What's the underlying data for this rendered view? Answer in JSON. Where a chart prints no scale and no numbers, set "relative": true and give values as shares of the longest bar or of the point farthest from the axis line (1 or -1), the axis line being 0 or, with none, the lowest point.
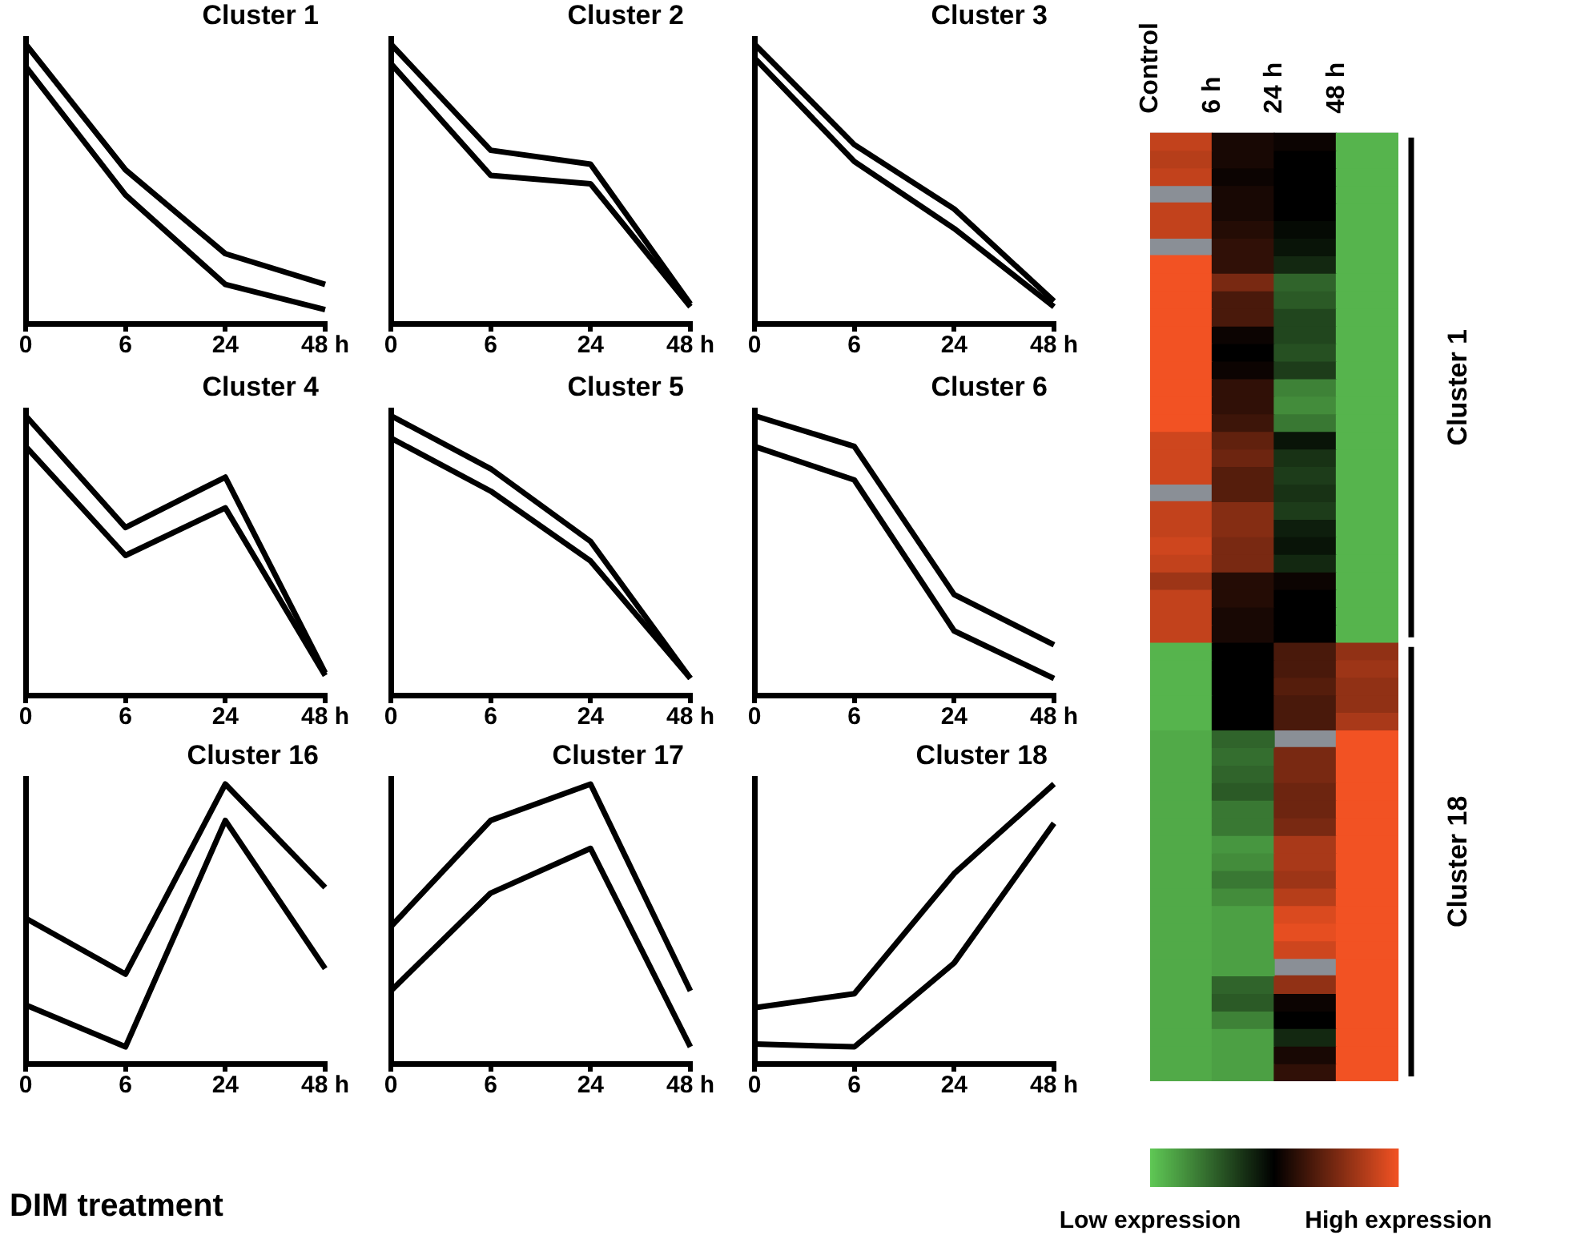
{
  "chart_data": [
    {
      "type": "line",
      "title": "Cluster 1",
      "categories": [
        "0",
        "6",
        "24",
        "48 h"
      ],
      "relative": true,
      "legend": false,
      "marker": "none",
      "line_style": "solid",
      "series": [
        {
          "color": "#000000",
          "values": [
            1.0,
            0.55,
            0.25,
            0.14
          ]
        },
        {
          "color": "#000000",
          "values": [
            0.92,
            0.46,
            0.14,
            0.05
          ]
        }
      ]
    },
    {
      "type": "line",
      "title": "Cluster 2",
      "categories": [
        "0",
        "6",
        "24",
        "48 h"
      ],
      "relative": true,
      "legend": false,
      "marker": "none",
      "line_style": "solid",
      "series": [
        {
          "color": "#000000",
          "values": [
            1.0,
            0.62,
            0.57,
            0.07
          ]
        },
        {
          "color": "#000000",
          "values": [
            0.93,
            0.53,
            0.5,
            0.06
          ]
        }
      ]
    },
    {
      "type": "line",
      "title": "Cluster 3",
      "categories": [
        "0",
        "6",
        "24",
        "48 h"
      ],
      "relative": true,
      "legend": false,
      "marker": "none",
      "line_style": "solid",
      "series": [
        {
          "color": "#000000",
          "values": [
            1.0,
            0.64,
            0.41,
            0.08
          ]
        },
        {
          "color": "#000000",
          "values": [
            0.95,
            0.58,
            0.34,
            0.06
          ]
        }
      ]
    },
    {
      "type": "line",
      "title": "Cluster 4",
      "categories": [
        "0",
        "6",
        "24",
        "48 h"
      ],
      "relative": true,
      "legend": false,
      "marker": "none",
      "line_style": "solid",
      "series": [
        {
          "color": "#000000",
          "values": [
            1.0,
            0.6,
            0.78,
            0.08
          ]
        },
        {
          "color": "#000000",
          "values": [
            0.89,
            0.5,
            0.67,
            0.07
          ]
        }
      ]
    },
    {
      "type": "line",
      "title": "Cluster 5",
      "categories": [
        "0",
        "6",
        "24",
        "48 h"
      ],
      "relative": true,
      "legend": false,
      "marker": "none",
      "line_style": "solid",
      "series": [
        {
          "color": "#000000",
          "values": [
            1.0,
            0.81,
            0.55,
            0.06
          ]
        },
        {
          "color": "#000000",
          "values": [
            0.92,
            0.73,
            0.48,
            0.06
          ]
        }
      ]
    },
    {
      "type": "line",
      "title": "Cluster 6",
      "categories": [
        "0",
        "6",
        "24",
        "48 h"
      ],
      "relative": true,
      "legend": false,
      "marker": "none",
      "line_style": "solid",
      "series": [
        {
          "color": "#000000",
          "values": [
            1.0,
            0.89,
            0.36,
            0.18
          ]
        },
        {
          "color": "#000000",
          "values": [
            0.89,
            0.77,
            0.23,
            0.06
          ]
        }
      ]
    },
    {
      "type": "line",
      "title": "Cluster 16",
      "categories": [
        "0",
        "6",
        "24",
        "48 h"
      ],
      "relative": true,
      "legend": false,
      "marker": "none",
      "line_style": "solid",
      "series": [
        {
          "color": "#000000",
          "values": [
            0.52,
            0.32,
            1.0,
            0.63
          ]
        },
        {
          "color": "#000000",
          "values": [
            0.21,
            0.06,
            0.87,
            0.34
          ]
        }
      ]
    },
    {
      "type": "line",
      "title": "Cluster 17",
      "categories": [
        "0",
        "6",
        "24",
        "48 h"
      ],
      "relative": true,
      "legend": false,
      "marker": "none",
      "line_style": "solid",
      "series": [
        {
          "color": "#000000",
          "values": [
            0.49,
            0.87,
            1.0,
            0.26
          ]
        },
        {
          "color": "#000000",
          "values": [
            0.26,
            0.61,
            0.77,
            0.06
          ]
        }
      ]
    },
    {
      "type": "line",
      "title": "Cluster 18",
      "categories": [
        "0",
        "6",
        "24",
        "48 h"
      ],
      "relative": true,
      "legend": false,
      "marker": "none",
      "line_style": "solid",
      "series": [
        {
          "color": "#000000",
          "values": [
            0.2,
            0.25,
            0.68,
            1.0
          ]
        },
        {
          "color": "#000000",
          "values": [
            0.07,
            0.06,
            0.36,
            0.86
          ]
        }
      ]
    },
    {
      "type": "heatmap",
      "categories": [
        "Control",
        "6 h",
        "24 h",
        "48 h"
      ],
      "y_categories": [
        null,
        null,
        null,
        null,
        null,
        null,
        null,
        null,
        null,
        null,
        null,
        null,
        null,
        null,
        null,
        null,
        null,
        null,
        null,
        null,
        null,
        null,
        null,
        null,
        null,
        null,
        null,
        null,
        null,
        null,
        null,
        null,
        null,
        null,
        null,
        null,
        null,
        null,
        null,
        null,
        null,
        null,
        null,
        null,
        null,
        null,
        null,
        null,
        null,
        null,
        null,
        null,
        null,
        null
      ],
      "y2_categories": [
        null,
        null,
        null,
        null,
        null,
        null,
        null,
        null,
        null,
        null,
        null,
        null,
        null,
        null,
        "Cluster 1",
        null,
        null,
        null,
        null,
        null,
        null,
        null,
        null,
        null,
        null,
        null,
        null,
        null,
        null,
        null,
        null,
        null,
        null,
        null,
        null,
        null,
        null,
        null,
        null,
        null,
        null,
        "Cluster 18",
        null,
        null,
        null,
        null,
        null,
        null,
        null,
        null,
        null,
        null,
        null,
        null
      ],
      "clim": [
        -1,
        1
      ],
      "cticks": [
        {
          "value": -1,
          "label": "Low expression"
        },
        {
          "value": 1,
          "label": "High expression"
        }
      ],
      "cells": [
        [
          0.8,
          0.1,
          0.05,
          -0.9
        ],
        [
          0.75,
          0.1,
          0.0,
          -0.9
        ],
        [
          0.8,
          0.05,
          0.0,
          -0.9
        ],
        [
          null,
          0.1,
          0.0,
          -0.9
        ],
        [
          0.8,
          0.1,
          0.0,
          -0.9
        ],
        [
          0.8,
          0.15,
          -0.05,
          -0.9
        ],
        [
          null,
          0.2,
          -0.1,
          -0.9
        ],
        [
          1.0,
          0.2,
          -0.2,
          -0.9
        ],
        [
          1.0,
          0.5,
          -0.5,
          -0.9
        ],
        [
          1.0,
          0.3,
          -0.45,
          -0.9
        ],
        [
          1.0,
          0.3,
          -0.35,
          -0.9
        ],
        [
          1.0,
          0.05,
          -0.35,
          -0.9
        ],
        [
          1.0,
          0.0,
          -0.4,
          -0.9
        ],
        [
          1.0,
          0.05,
          -0.3,
          -0.9
        ],
        [
          1.0,
          0.2,
          -0.65,
          -0.9
        ],
        [
          1.0,
          0.2,
          -0.7,
          -0.9
        ],
        [
          1.0,
          0.25,
          -0.6,
          -0.9
        ],
        [
          0.85,
          0.4,
          -0.1,
          -0.9
        ],
        [
          0.85,
          0.45,
          -0.25,
          -0.9
        ],
        [
          0.85,
          0.35,
          -0.3,
          -0.9
        ],
        [
          null,
          0.35,
          -0.25,
          -0.9
        ],
        [
          0.8,
          0.55,
          -0.3,
          -0.9
        ],
        [
          0.8,
          0.55,
          -0.15,
          -0.9
        ],
        [
          0.85,
          0.5,
          -0.1,
          -0.9
        ],
        [
          0.8,
          0.5,
          -0.2,
          -0.9
        ],
        [
          0.65,
          0.15,
          0.05,
          -0.9
        ],
        [
          0.8,
          0.15,
          0.0,
          -0.9
        ],
        [
          0.8,
          0.1,
          0.0,
          -0.9
        ],
        [
          0.8,
          0.1,
          0.0,
          -0.9
        ],
        [
          -0.9,
          0.0,
          0.3,
          0.6
        ],
        [
          -0.9,
          0.0,
          0.3,
          0.65
        ],
        [
          -0.9,
          0.0,
          0.35,
          0.6
        ],
        [
          -0.9,
          0.0,
          0.3,
          0.6
        ],
        [
          -0.9,
          0.0,
          0.3,
          0.7
        ],
        [
          -0.85,
          -0.5,
          null,
          1.0
        ],
        [
          -0.85,
          -0.55,
          0.5,
          1.0
        ],
        [
          -0.85,
          -0.5,
          0.5,
          1.0
        ],
        [
          -0.85,
          -0.45,
          0.45,
          1.0
        ],
        [
          -0.85,
          -0.6,
          0.45,
          1.0
        ],
        [
          -0.85,
          -0.6,
          0.5,
          1.0
        ],
        [
          -0.85,
          -0.75,
          0.7,
          1.0
        ],
        [
          -0.85,
          -0.7,
          0.7,
          1.0
        ],
        [
          -0.85,
          -0.6,
          0.65,
          1.0
        ],
        [
          -0.85,
          -0.7,
          0.75,
          1.0
        ],
        [
          -0.85,
          -0.8,
          0.9,
          1.0
        ],
        [
          -0.85,
          -0.8,
          0.95,
          1.0
        ],
        [
          -0.85,
          -0.8,
          0.85,
          1.0
        ],
        [
          -0.85,
          -0.8,
          null,
          1.0
        ],
        [
          -0.85,
          -0.5,
          0.6,
          1.0
        ],
        [
          -0.85,
          -0.45,
          0.05,
          1.0
        ],
        [
          -0.85,
          -0.65,
          0.0,
          1.0
        ],
        [
          -0.85,
          -0.8,
          -0.2,
          1.0
        ],
        [
          -0.85,
          -0.8,
          0.1,
          1.0
        ],
        [
          -0.85,
          -0.8,
          0.2,
          1.0
        ]
      ]
    },
    {
      "type": "other",
      "title": "DIM treatment"
    }
  ]
}
